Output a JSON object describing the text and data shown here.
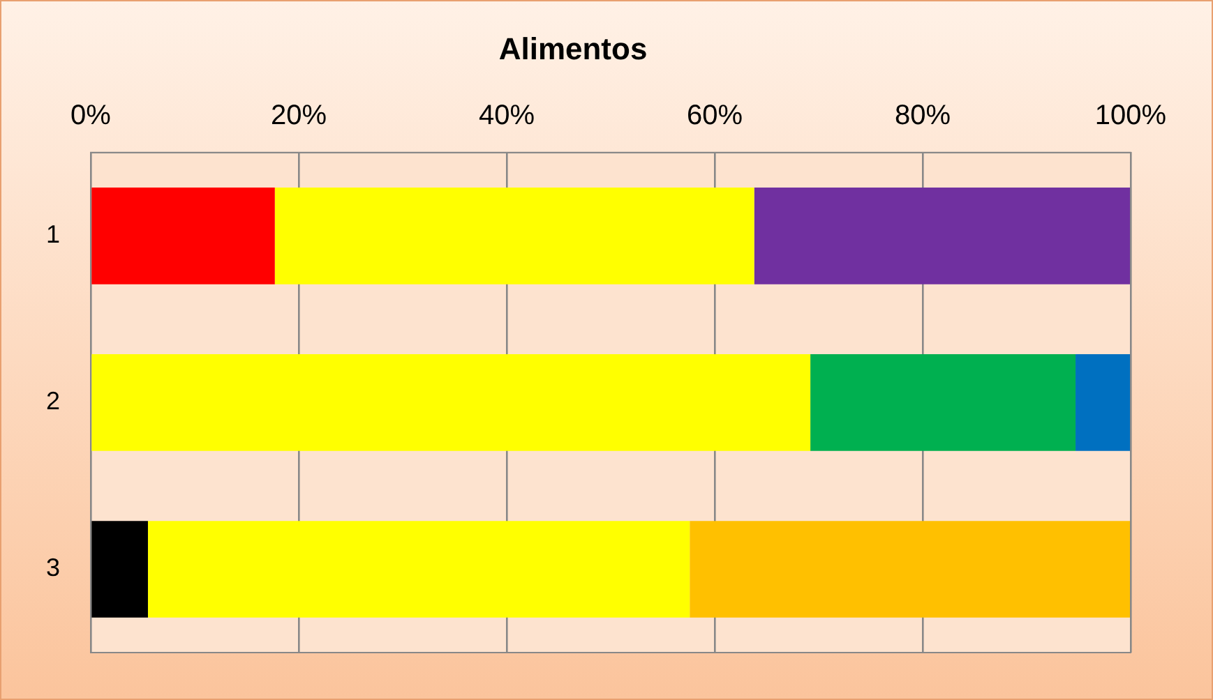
{
  "chart_data": {
    "type": "bar",
    "title": "Alimentos",
    "orientation": "horizontal",
    "stacked": true,
    "categories": [
      "1",
      "2",
      "3"
    ],
    "series": [
      {
        "color": "#000000",
        "values": [
          null,
          null,
          5.5
        ]
      },
      {
        "color": "#ff0000",
        "values": [
          17.7,
          null,
          null
        ]
      },
      {
        "color": "#ffff00",
        "values": [
          46.1,
          69.2,
          52.1
        ]
      },
      {
        "color": "#00b050",
        "values": [
          null,
          25.5,
          null
        ]
      },
      {
        "color": "#7030a0",
        "values": [
          36.2,
          null,
          null
        ]
      },
      {
        "color": "#ffc000",
        "values": [
          null,
          null,
          42.4
        ]
      },
      {
        "color": "#0070c0",
        "values": [
          null,
          5.3,
          null
        ]
      }
    ],
    "xlim": [
      0,
      100
    ],
    "xticks": [
      {
        "value": 0,
        "label": "0%"
      },
      {
        "value": 20,
        "label": "20%"
      },
      {
        "value": 40,
        "label": "40%"
      },
      {
        "value": 60,
        "label": "60%"
      },
      {
        "value": 80,
        "label": "80%"
      },
      {
        "value": 100,
        "label": "100%"
      }
    ],
    "grid": "x",
    "legend": false
  }
}
